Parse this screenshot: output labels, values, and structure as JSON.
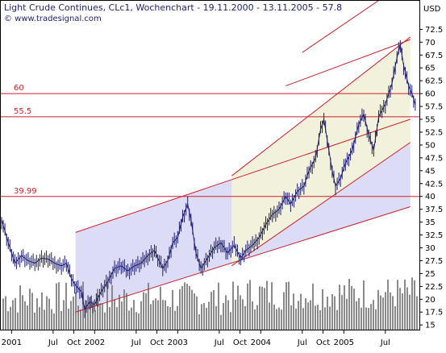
{
  "header": {
    "title": "Light Crude Continues, CLc1, Wochenchart - 19.11.2000 - 13.11.2005 - 57.8",
    "source": "© www.tradesignal.com",
    "currency": "USD"
  },
  "colors": {
    "price": "#1e1e6e",
    "channel_line": "#cc1f2a",
    "channel_fill": "#dcdcf7",
    "inner_fill": "#f2f2dc",
    "volume": "#8a8a8a",
    "frame": "#000000"
  },
  "chart_data": {
    "type": "line",
    "y_axis": {
      "min": 15.5,
      "max": 73.5,
      "ticks": [
        15,
        17.5,
        20,
        22.5,
        25,
        27.5,
        30,
        32.5,
        35,
        37.5,
        40,
        42.5,
        45,
        47.5,
        50,
        52.5,
        55,
        57.5,
        60,
        62.5,
        65,
        67.5,
        70,
        72.5
      ]
    },
    "x_axis": {
      "labels": [
        {
          "label": "2001",
          "t": 2001.0
        },
        {
          "label": "Jul",
          "t": 2001.5
        },
        {
          "label": "Oct",
          "t": 2001.75
        },
        {
          "label": "2002",
          "t": 2002.0
        },
        {
          "label": "Jul",
          "t": 2002.5
        },
        {
          "label": "Oct",
          "t": 2002.75
        },
        {
          "label": "2003",
          "t": 2003.0
        },
        {
          "label": "Jul",
          "t": 2003.5
        },
        {
          "label": "Oct",
          "t": 2003.75
        },
        {
          "label": "2004",
          "t": 2004.0
        },
        {
          "label": "Jul",
          "t": 2004.5
        },
        {
          "label": "Oct",
          "t": 2004.75
        },
        {
          "label": "2005",
          "t": 2005.0
        },
        {
          "label": "Jul",
          "t": 2005.5
        }
      ]
    },
    "horizontal_levels": [
      {
        "value": 60,
        "label": "60"
      },
      {
        "value": 55.5,
        "label": "55.5"
      },
      {
        "value": 39.99,
        "label": "39.99"
      }
    ],
    "trend_lines": [
      {
        "from": [
          2001.77,
          33.0
        ],
        "to": [
          2005.8,
          55.0
        ]
      },
      {
        "from": [
          2001.77,
          17.5
        ],
        "to": [
          2005.8,
          38.0
        ]
      },
      {
        "from": [
          2003.65,
          44.0
        ],
        "to": [
          2005.8,
          71.0
        ]
      },
      {
        "from": [
          2003.65,
          26.5
        ],
        "to": [
          2005.8,
          50.5
        ]
      },
      {
        "from": [
          2004.3,
          61.5
        ],
        "to": [
          2005.8,
          70.5
        ]
      },
      {
        "from": [
          2004.5,
          68.0
        ],
        "to": [
          2005.5,
          79.0
        ]
      }
    ],
    "series": [
      {
        "values": [
          [
            2000.88,
            35.5
          ],
          [
            2000.96,
            31.0
          ],
          [
            2001.04,
            27.0
          ],
          [
            2001.12,
            28.5
          ],
          [
            2001.2,
            27.5
          ],
          [
            2001.28,
            27.0
          ],
          [
            2001.36,
            28.0
          ],
          [
            2001.44,
            27.8
          ],
          [
            2001.52,
            27.0
          ],
          [
            2001.6,
            26.5
          ],
          [
            2001.66,
            27.0
          ],
          [
            2001.72,
            24.0
          ],
          [
            2001.78,
            22.5
          ],
          [
            2001.84,
            21.5
          ],
          [
            2001.88,
            18.0
          ],
          [
            2001.94,
            19.5
          ],
          [
            2002.0,
            19.0
          ],
          [
            2002.08,
            21.5
          ],
          [
            2002.16,
            23.5
          ],
          [
            2002.24,
            26.0
          ],
          [
            2002.32,
            26.5
          ],
          [
            2002.4,
            25.5
          ],
          [
            2002.48,
            26.5
          ],
          [
            2002.56,
            27.0
          ],
          [
            2002.64,
            28.5
          ],
          [
            2002.72,
            29.5
          ],
          [
            2002.76,
            28.0
          ],
          [
            2002.82,
            26.0
          ],
          [
            2002.88,
            27.5
          ],
          [
            2002.94,
            31.0
          ],
          [
            2003.0,
            32.0
          ],
          [
            2003.06,
            36.0
          ],
          [
            2003.12,
            38.5
          ],
          [
            2003.16,
            35.5
          ],
          [
            2003.22,
            29.0
          ],
          [
            2003.28,
            26.0
          ],
          [
            2003.36,
            28.0
          ],
          [
            2003.44,
            30.0
          ],
          [
            2003.52,
            31.0
          ],
          [
            2003.6,
            29.0
          ],
          [
            2003.68,
            30.5
          ],
          [
            2003.76,
            28.0
          ],
          [
            2003.82,
            29.5
          ],
          [
            2003.9,
            30.5
          ],
          [
            2003.98,
            32.0
          ],
          [
            2004.06,
            34.5
          ],
          [
            2004.14,
            36.5
          ],
          [
            2004.22,
            37.5
          ],
          [
            2004.3,
            40.0
          ],
          [
            2004.36,
            38.5
          ],
          [
            2004.44,
            41.0
          ],
          [
            2004.52,
            42.0
          ],
          [
            2004.58,
            45.0
          ],
          [
            2004.66,
            47.5
          ],
          [
            2004.72,
            53.0
          ],
          [
            2004.76,
            55.0
          ],
          [
            2004.8,
            51.0
          ],
          [
            2004.86,
            45.0
          ],
          [
            2004.9,
            42.0
          ],
          [
            2004.96,
            43.5
          ],
          [
            2005.02,
            46.5
          ],
          [
            2005.1,
            49.0
          ],
          [
            2005.18,
            54.0
          ],
          [
            2005.24,
            56.0
          ],
          [
            2005.3,
            52.0
          ],
          [
            2005.36,
            49.0
          ],
          [
            2005.42,
            55.5
          ],
          [
            2005.5,
            58.0
          ],
          [
            2005.58,
            62.0
          ],
          [
            2005.64,
            67.0
          ],
          [
            2005.68,
            69.5
          ],
          [
            2005.72,
            65.5
          ],
          [
            2005.78,
            61.5
          ],
          [
            2005.82,
            60.0
          ],
          [
            2005.86,
            57.8
          ]
        ]
      }
    ]
  }
}
